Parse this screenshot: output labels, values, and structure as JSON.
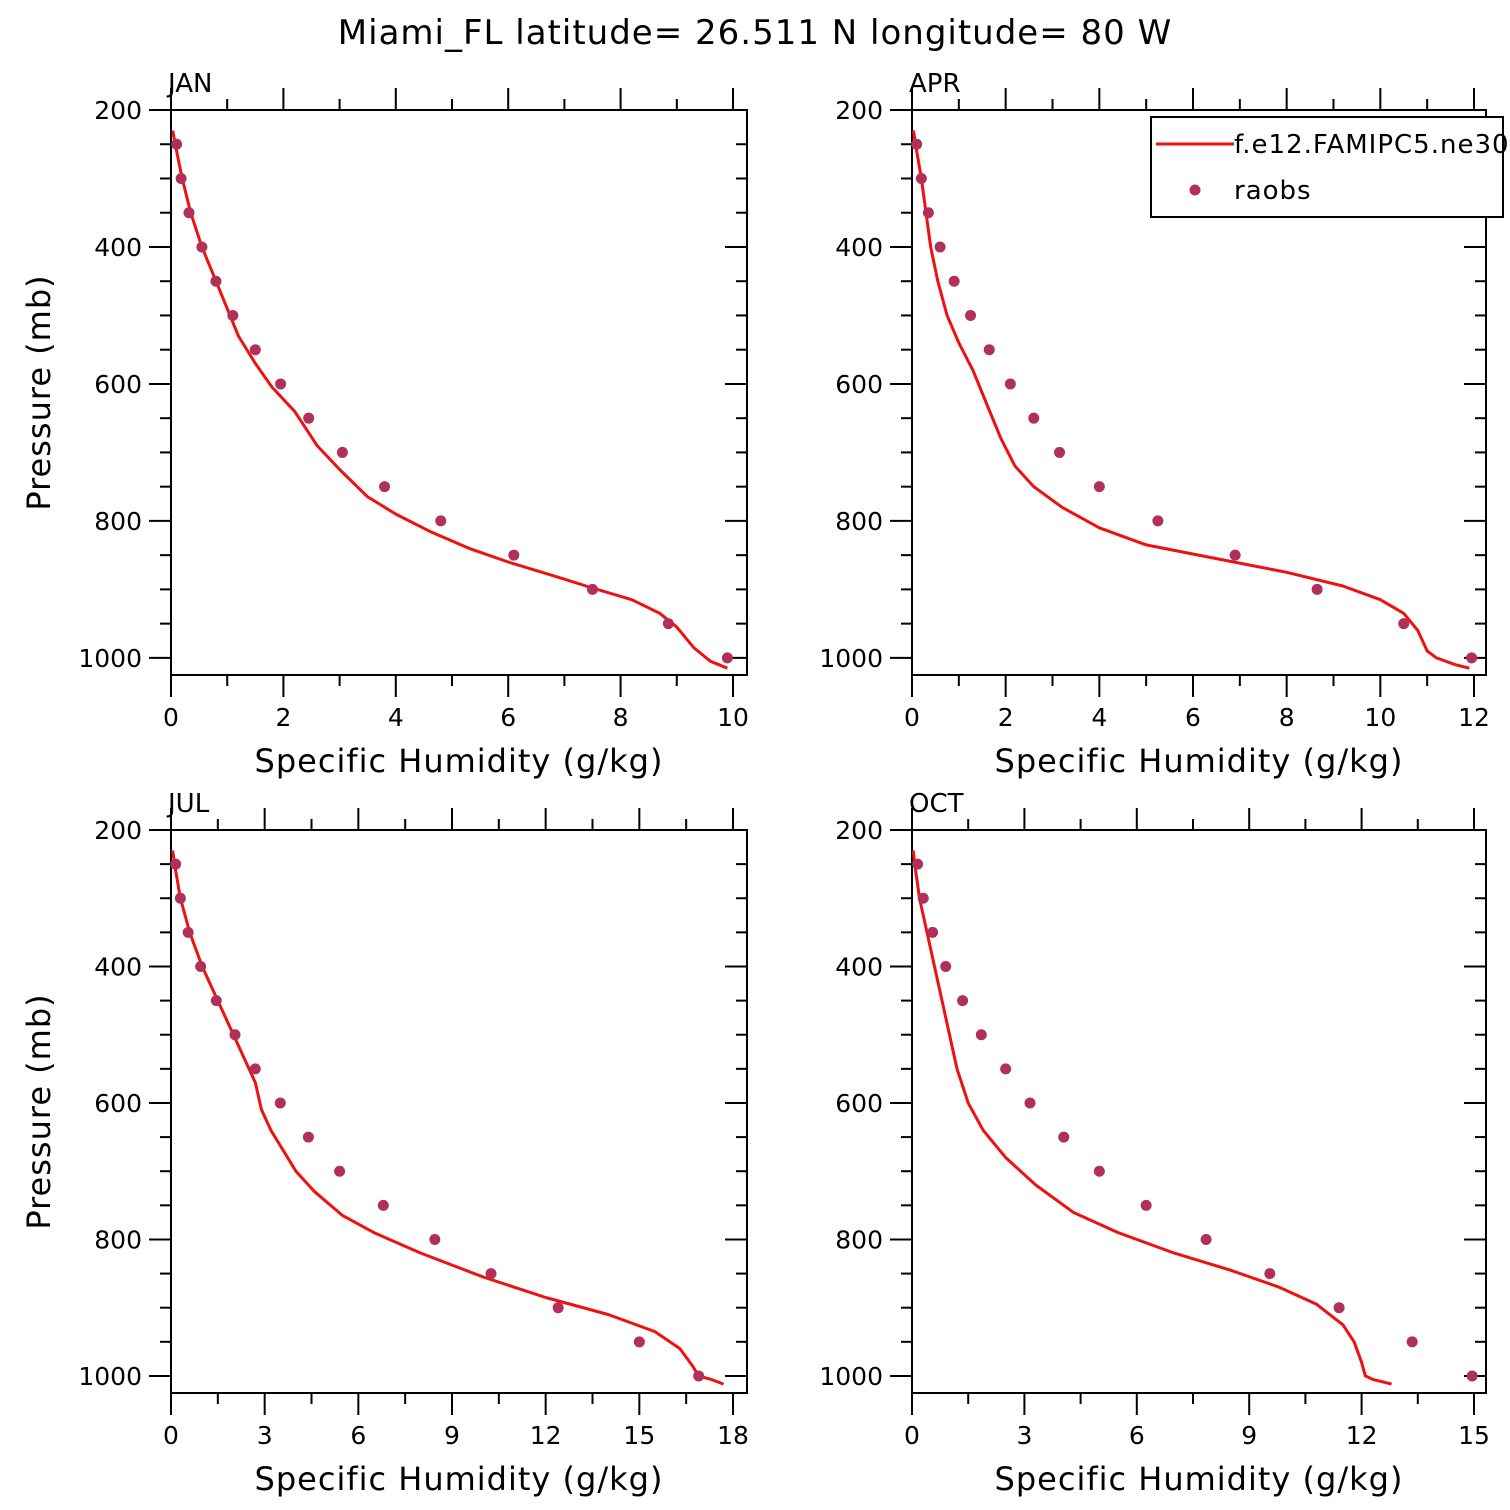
{
  "figure": {
    "title": "Miami_FL  latitude= 26.511 N longitude= 80 W"
  },
  "colors": {
    "model": "#ee1111",
    "raobs": "#b0305a",
    "axis": "#000000"
  },
  "legend": {
    "placement": "top-right of APR panel",
    "model_label": "f.e12.FAMIPC5.ne30",
    "obs_label": "raobs"
  },
  "chart_data": [
    {
      "type": "line+scatter",
      "title": "JAN",
      "xlabel": "Specific Humidity (g/kg)",
      "ylabel": "Pressure (mb)",
      "xlim": [
        0,
        10
      ],
      "ylim": [
        1025,
        200
      ],
      "xticks": [
        0,
        2,
        4,
        6,
        8,
        10
      ],
      "yticks": [
        200,
        400,
        600,
        800,
        1000
      ],
      "series": [
        {
          "name": "f.e12.FAMIPC5.ne30",
          "kind": "line",
          "x": [
            0.03,
            0.1,
            0.2,
            0.35,
            0.55,
            0.8,
            1.0,
            1.2,
            1.5,
            1.8,
            2.2,
            2.6,
            3.0,
            3.5,
            4.0,
            4.6,
            5.3,
            6.0,
            6.8,
            7.5,
            8.2,
            8.7,
            9.0,
            9.3,
            9.6,
            9.9
          ],
          "y": [
            230,
            260,
            300,
            350,
            400,
            450,
            490,
            530,
            570,
            605,
            640,
            690,
            725,
            765,
            790,
            815,
            840,
            860,
            880,
            898,
            915,
            935,
            955,
            985,
            1005,
            1015
          ]
        },
        {
          "name": "raobs",
          "kind": "scatter",
          "x": [
            0.1,
            0.18,
            0.32,
            0.55,
            0.8,
            1.1,
            1.5,
            1.95,
            2.45,
            3.05,
            3.8,
            4.8,
            6.1,
            7.5,
            8.85,
            9.9
          ],
          "y": [
            250,
            300,
            350,
            400,
            450,
            500,
            550,
            600,
            650,
            700,
            750,
            800,
            850,
            900,
            950,
            1000
          ]
        }
      ]
    },
    {
      "type": "line+scatter",
      "title": "APR",
      "xlabel": "Specific Humidity (g/kg)",
      "ylabel": "",
      "xlim": [
        0,
        12
      ],
      "ylim": [
        1025,
        200
      ],
      "xticks": [
        0,
        2,
        4,
        6,
        8,
        10,
        12
      ],
      "yticks": [
        200,
        400,
        600,
        800,
        1000
      ],
      "series": [
        {
          "name": "f.e12.FAMIPC5.ne30",
          "kind": "line",
          "x": [
            0.03,
            0.1,
            0.2,
            0.3,
            0.4,
            0.55,
            0.75,
            1.0,
            1.3,
            1.6,
            1.9,
            2.2,
            2.6,
            3.2,
            4.0,
            5.0,
            6.5,
            8.0,
            9.2,
            10.0,
            10.5,
            10.8,
            11.0,
            11.2,
            11.6,
            11.9
          ],
          "y": [
            230,
            260,
            300,
            350,
            400,
            450,
            500,
            540,
            580,
            630,
            680,
            720,
            750,
            780,
            810,
            835,
            855,
            875,
            895,
            915,
            935,
            960,
            990,
            1000,
            1010,
            1015
          ]
        },
        {
          "name": "raobs",
          "kind": "scatter",
          "x": [
            0.1,
            0.2,
            0.35,
            0.6,
            0.9,
            1.25,
            1.65,
            2.1,
            2.6,
            3.15,
            4.0,
            5.25,
            6.9,
            8.65,
            10.5,
            11.95
          ],
          "y": [
            250,
            300,
            350,
            400,
            450,
            500,
            550,
            600,
            650,
            700,
            750,
            800,
            850,
            900,
            950,
            1000
          ]
        }
      ]
    },
    {
      "type": "line+scatter",
      "title": "JUL",
      "xlabel": "Specific Humidity (g/kg)",
      "ylabel": "Pressure (mb)",
      "xlim": [
        0,
        18
      ],
      "ylim": [
        1025,
        200
      ],
      "xticks": [
        0,
        3,
        6,
        9,
        12,
        15,
        18
      ],
      "yticks": [
        200,
        400,
        600,
        800,
        1000
      ],
      "series": [
        {
          "name": "f.e12.FAMIPC5.ne30",
          "kind": "line",
          "x": [
            0.05,
            0.15,
            0.3,
            0.6,
            1.0,
            1.5,
            2.0,
            2.4,
            2.7,
            2.9,
            3.2,
            3.6,
            4.0,
            4.6,
            5.5,
            6.5,
            8.0,
            10.0,
            12.0,
            14.0,
            15.5,
            16.3,
            16.7,
            16.9,
            17.3,
            17.7
          ],
          "y": [
            230,
            260,
            300,
            350,
            400,
            450,
            500,
            540,
            570,
            610,
            640,
            670,
            700,
            730,
            765,
            790,
            820,
            855,
            885,
            910,
            935,
            960,
            985,
            1000,
            1005,
            1012
          ]
        },
        {
          "name": "raobs",
          "kind": "scatter",
          "x": [
            0.15,
            0.3,
            0.55,
            0.95,
            1.45,
            2.05,
            2.7,
            3.5,
            4.4,
            5.4,
            6.8,
            8.45,
            10.25,
            12.4,
            15.0,
            16.9
          ],
          "y": [
            250,
            300,
            350,
            400,
            450,
            500,
            550,
            600,
            650,
            700,
            750,
            800,
            850,
            900,
            950,
            1000
          ]
        }
      ]
    },
    {
      "type": "line+scatter",
      "title": "OCT",
      "xlabel": "Specific Humidity (g/kg)",
      "ylabel": "",
      "xlim": [
        0,
        15
      ],
      "ylim": [
        1025,
        200
      ],
      "xticks": [
        0,
        3,
        6,
        9,
        12,
        15
      ],
      "yticks": [
        200,
        400,
        600,
        800,
        1000
      ],
      "series": [
        {
          "name": "f.e12.FAMIPC5.ne30",
          "kind": "line",
          "x": [
            0.03,
            0.1,
            0.2,
            0.4,
            0.6,
            0.8,
            1.0,
            1.2,
            1.5,
            1.9,
            2.5,
            3.3,
            4.3,
            5.5,
            7.0,
            8.5,
            9.8,
            10.8,
            11.5,
            11.8,
            12.0,
            12.1,
            12.3,
            12.8
          ],
          "y": [
            230,
            260,
            300,
            350,
            400,
            450,
            500,
            550,
            600,
            640,
            680,
            720,
            760,
            790,
            820,
            845,
            870,
            895,
            925,
            950,
            980,
            1000,
            1005,
            1012
          ]
        },
        {
          "name": "raobs",
          "kind": "scatter",
          "x": [
            0.15,
            0.3,
            0.55,
            0.9,
            1.35,
            1.85,
            2.5,
            3.15,
            4.05,
            5.0,
            6.25,
            7.85,
            9.55,
            11.4,
            13.35,
            14.95
          ],
          "y": [
            250,
            300,
            350,
            400,
            450,
            500,
            550,
            600,
            650,
            700,
            750,
            800,
            850,
            900,
            950,
            1000
          ]
        }
      ]
    }
  ]
}
